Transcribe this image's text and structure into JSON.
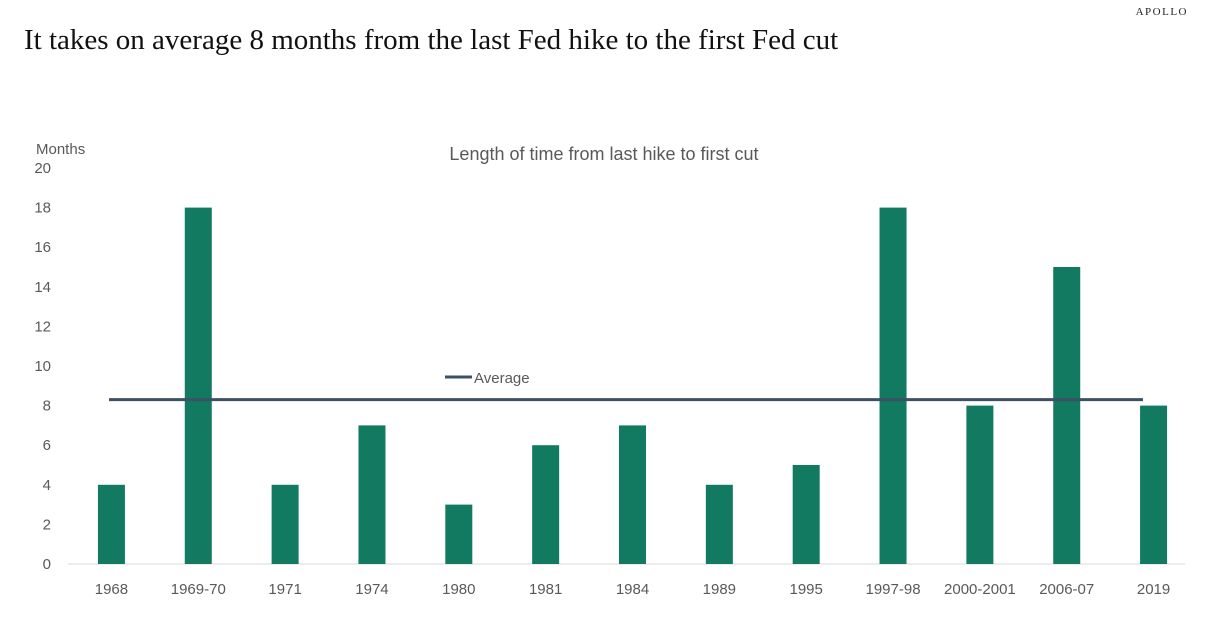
{
  "brand": "APOLLO",
  "headline": "It takes on average 8 months from the last Fed hike to the first Fed cut",
  "colors": {
    "bar": "#117a60",
    "average_line": "#3d5166",
    "text": "#595959",
    "axis": "#d9d9d9"
  },
  "chart_data": {
    "type": "bar",
    "title": "Length of time from last hike to first cut",
    "ylabel": "Months",
    "xlabel": "",
    "ylim": [
      0,
      20
    ],
    "yticks": [
      0,
      2,
      4,
      6,
      8,
      10,
      12,
      14,
      16,
      18,
      20
    ],
    "categories": [
      "1968",
      "1969-70",
      "1971",
      "1974",
      "1980",
      "1981",
      "1984",
      "1989",
      "1995",
      "1997-98",
      "2000-2001",
      "2006-07",
      "2019"
    ],
    "series": [
      {
        "type": "bar",
        "values": [
          4,
          18,
          4,
          7,
          3,
          6,
          7,
          4,
          5,
          18,
          8,
          15,
          8
        ]
      },
      {
        "name": "Average",
        "type": "line",
        "value": 8.3
      }
    ],
    "legend": "top-center",
    "grid": false
  }
}
